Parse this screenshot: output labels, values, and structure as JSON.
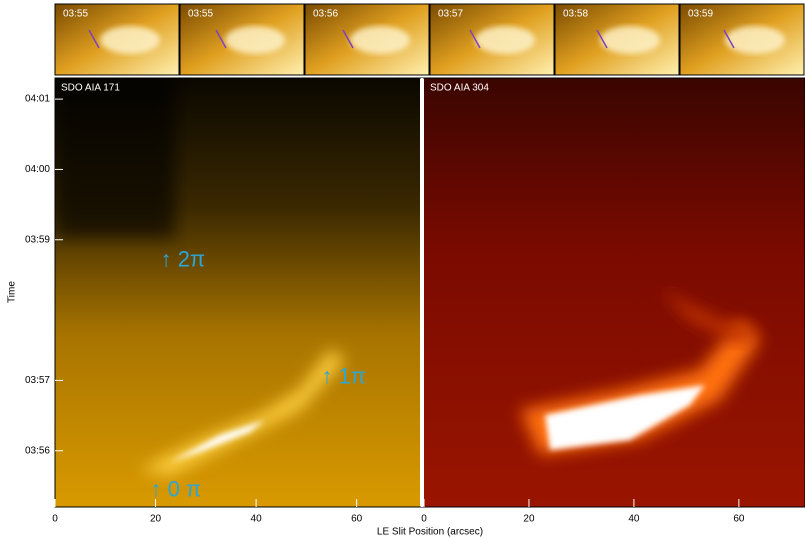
{
  "thumbnails": {
    "labels": [
      "03:55",
      "03:55",
      "03:56",
      "03:57",
      "03:58",
      "03:59"
    ]
  },
  "chart_data": {
    "type": "image",
    "panels": [
      {
        "title": "SDO AIA 171",
        "xlim": [
          0,
          72.6
        ],
        "xticks": [
          0,
          20,
          40,
          60
        ]
      },
      {
        "title": "SDO AIA 304",
        "xlim": [
          0,
          72.6
        ],
        "xticks": [
          0,
          20,
          40,
          60
        ]
      }
    ],
    "xlabel": "LE Slit Position (arcsec)",
    "ylabel": "Time",
    "ylim": [
      55.2,
      61.3
    ],
    "yticks": [
      {
        "value": 56,
        "label": "03:56"
      },
      {
        "value": 57,
        "label": "03:57"
      },
      {
        "value": 59,
        "label": "03:59"
      },
      {
        "value": 60,
        "label": "04:00"
      },
      {
        "value": 61,
        "label": "04:01"
      }
    ],
    "annotations": [
      {
        "text": "↑ 2π",
        "x": 21,
        "y": 58.7
      },
      {
        "text": "↑ 1π",
        "x": 53,
        "y": 57.04
      },
      {
        "text": "↑ 0 π",
        "x": 19,
        "y": 55.43
      }
    ]
  }
}
